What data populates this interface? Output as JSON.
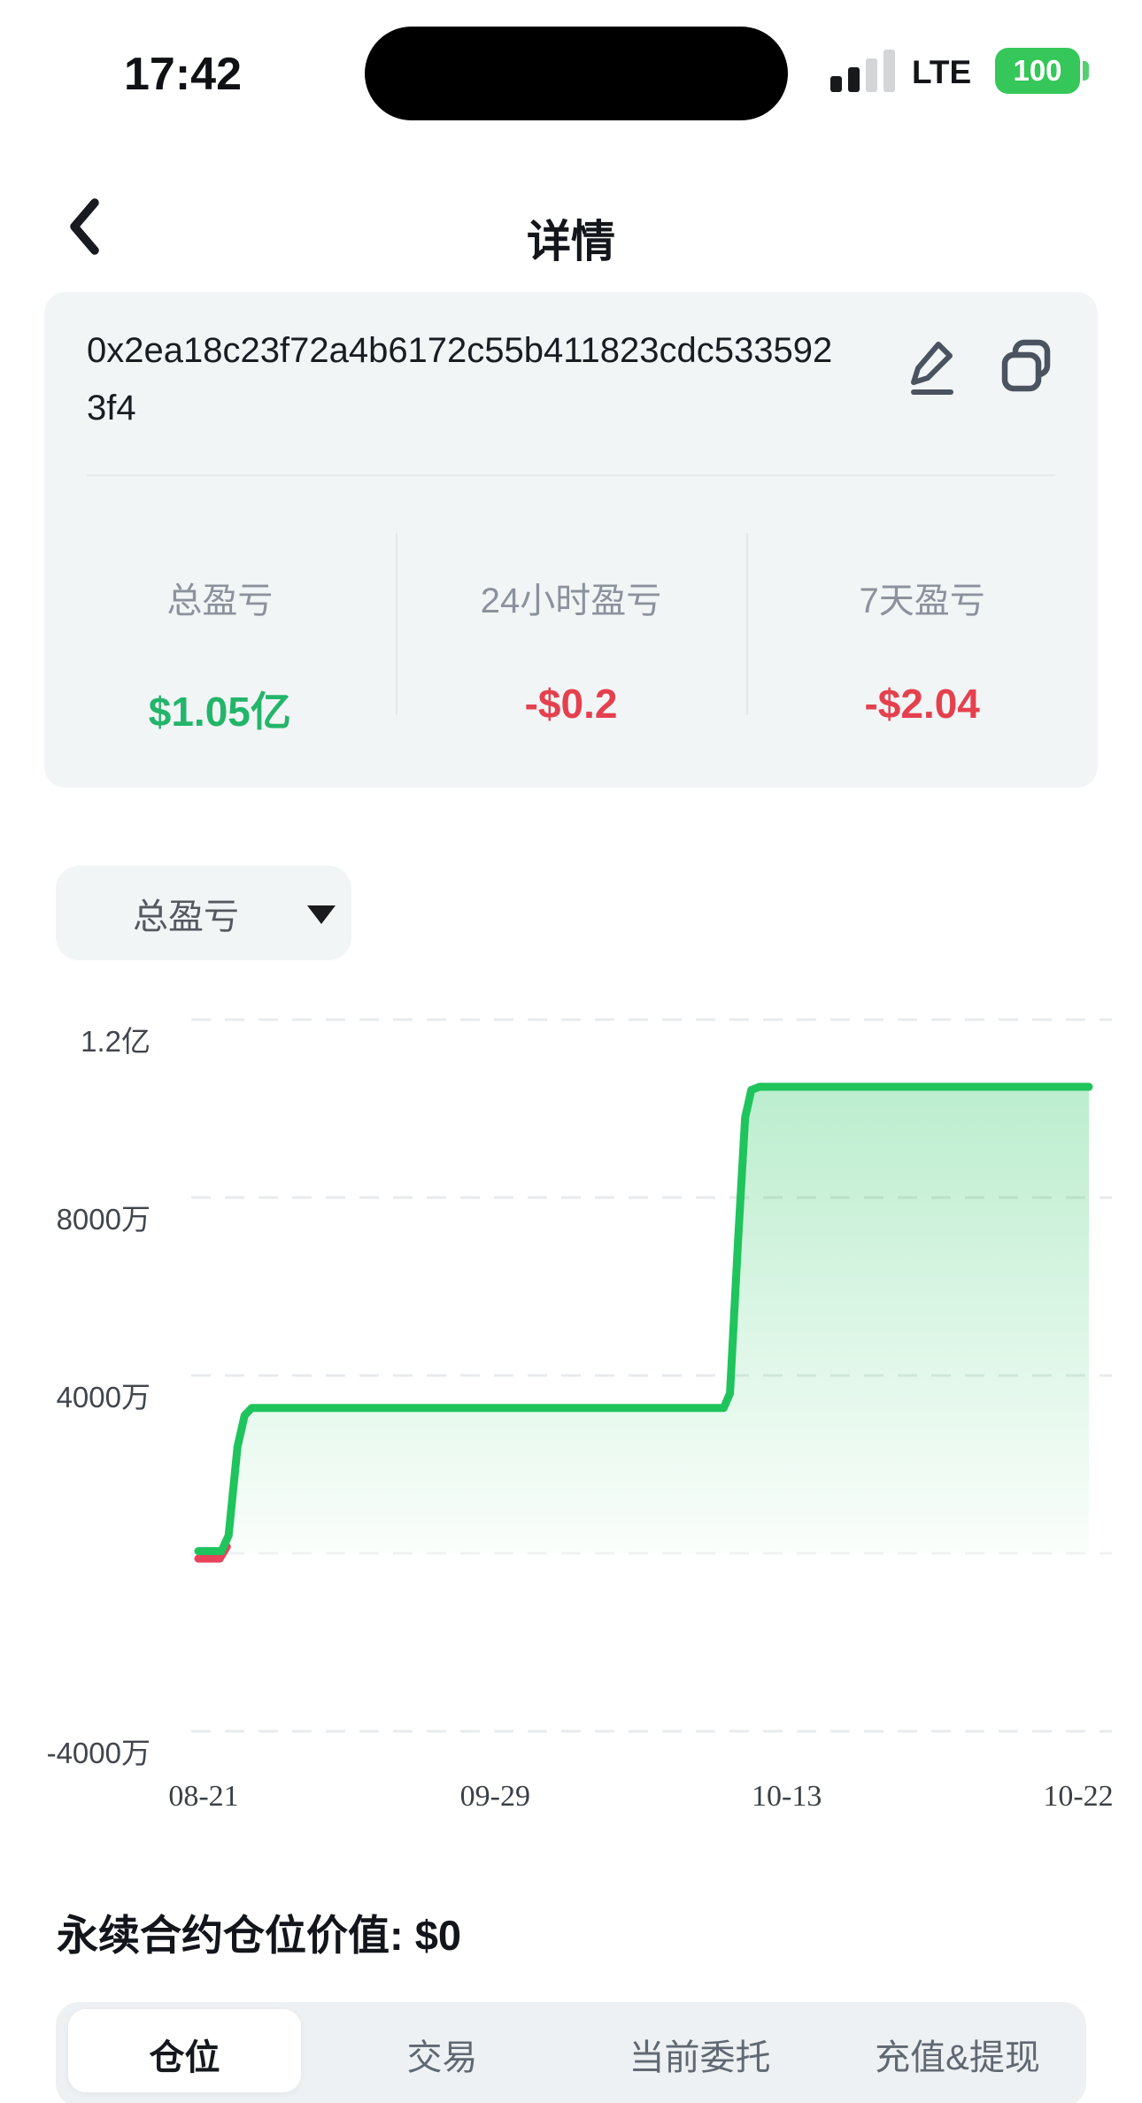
{
  "status_bar": {
    "time": "17:42",
    "network": "LTE",
    "battery_percent": "100",
    "signal_bars": {
      "filled": 2,
      "total": 4
    },
    "colors": {
      "battery": "#35c759",
      "bar_filled": "#17191b",
      "bar_empty": "#d3d5d7"
    }
  },
  "header": {
    "title": "详情"
  },
  "wallet_card": {
    "address_full": "0x2ea18c23f72a4b6172c55b411823cdc5335923f4",
    "address_line1": "0x2ea18c23f72a4b6172c55b411823cdc533592",
    "address_line2": "3f4",
    "stats": [
      {
        "label": "总盈亏",
        "value": "$1.05亿",
        "trend": "positive",
        "color": "#23b56a"
      },
      {
        "label": "24小时盈亏",
        "value": "-$0.2",
        "trend": "negative",
        "color": "#e5404e"
      },
      {
        "label": "7天盈亏",
        "value": "-$2.04",
        "trend": "negative",
        "color": "#e5404e"
      }
    ]
  },
  "metric_selector": {
    "selected_label": "总盈亏"
  },
  "chart_data": {
    "type": "area",
    "title": "总盈亏",
    "grid": "dashed-horizontal",
    "legend": "none",
    "y_value_unit": "万",
    "ylim": [
      -4000,
      12000
    ],
    "y_ticks": [
      {
        "label": "1.2亿",
        "value": 12000
      },
      {
        "label": "8000万",
        "value": 8000
      },
      {
        "label": "4000万",
        "value": 4000
      },
      {
        "label": "-4000万",
        "value": -4000
      }
    ],
    "x_ticks": [
      "08-21",
      "09-29",
      "10-13",
      "10-22"
    ],
    "line_color": "#1fc45c",
    "negative_color": "#e8435a",
    "series": [
      {
        "name": "总盈亏",
        "points": [
          [
            0.0,
            50
          ],
          [
            0.026,
            50
          ],
          [
            0.034,
            400
          ],
          [
            0.044,
            2400
          ],
          [
            0.052,
            3100
          ],
          [
            0.06,
            3270
          ],
          [
            0.59,
            3270
          ],
          [
            0.597,
            3600
          ],
          [
            0.606,
            7000
          ],
          [
            0.614,
            9800
          ],
          [
            0.621,
            10420
          ],
          [
            0.63,
            10490
          ],
          [
            1.0,
            10490
          ]
        ]
      }
    ],
    "negative_segment": [
      [
        0.0,
        -120
      ],
      [
        0.024,
        -120
      ],
      [
        0.032,
        150
      ]
    ]
  },
  "position_summary": {
    "text": "永续合约仓位价值: $0"
  },
  "tabs": [
    {
      "label": "仓位",
      "active": true
    },
    {
      "label": "交易",
      "active": false
    },
    {
      "label": "当前委托",
      "active": false
    },
    {
      "label": "充值&提现",
      "active": false
    }
  ]
}
